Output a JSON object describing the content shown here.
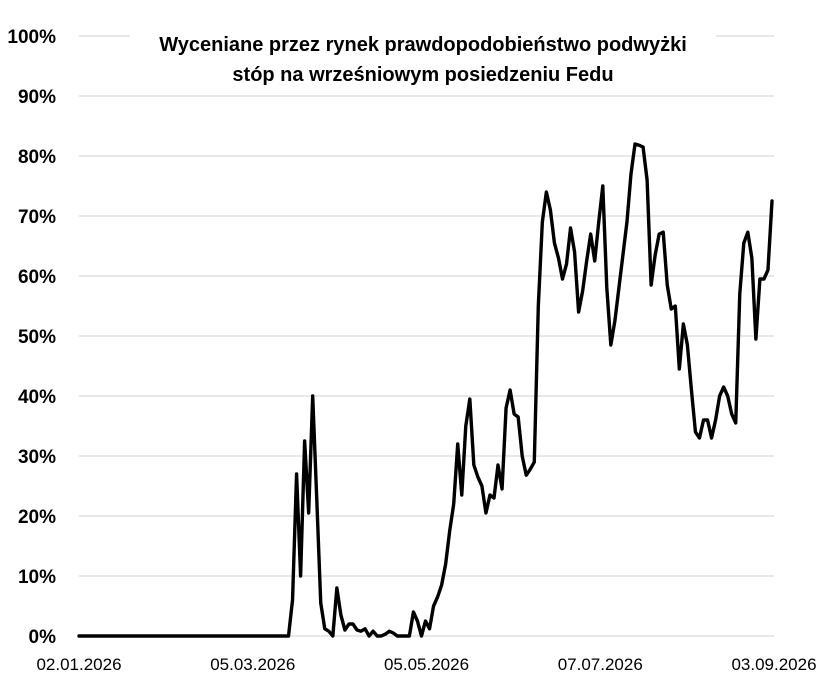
{
  "chart_data": {
    "type": "line",
    "title_lines": [
      "Wyceniane przez rynek prawdopodobieństwo podwyżki",
      "stóp na wrześniowym posiedzeniu Fedu"
    ],
    "xlabel": "",
    "ylabel": "",
    "ylim": [
      0,
      100
    ],
    "y_ticks": [
      {
        "value": 0,
        "label": "0%"
      },
      {
        "value": 10,
        "label": "10%"
      },
      {
        "value": 20,
        "label": "20%"
      },
      {
        "value": 30,
        "label": "30%"
      },
      {
        "value": 40,
        "label": "40%"
      },
      {
        "value": 50,
        "label": "50%"
      },
      {
        "value": 60,
        "label": "60%"
      },
      {
        "value": 70,
        "label": "70%"
      },
      {
        "value": 80,
        "label": "80%"
      },
      {
        "value": 90,
        "label": "90%"
      },
      {
        "value": 100,
        "label": "100%"
      }
    ],
    "x_ticks": [
      "02.01.2026",
      "05.03.2026",
      "05.05.2026",
      "07.07.2026",
      "03.09.2026"
    ],
    "grid": true,
    "legend": "none",
    "line_color": "#000000",
    "series": [
      {
        "values": [
          0,
          0,
          0,
          0,
          0,
          0,
          0,
          0,
          0,
          0,
          0,
          0,
          0,
          0,
          0,
          0,
          0,
          0,
          0,
          0,
          0,
          0,
          0,
          0,
          0,
          0,
          0,
          0,
          0,
          0,
          0,
          0,
          0,
          0,
          0,
          0,
          0,
          0,
          0,
          0,
          0,
          0,
          0,
          0,
          0,
          0,
          0,
          0,
          0,
          0,
          0,
          0,
          0,
          6,
          27,
          10,
          32.5,
          20.5,
          40,
          23,
          5.5,
          1.2,
          0.8,
          0,
          8,
          3.5,
          1,
          2,
          2,
          1,
          0.8,
          1.2,
          0,
          0.8,
          0,
          0,
          0.3,
          0.8,
          0.5,
          0,
          0,
          0,
          0,
          4,
          2.5,
          0,
          2.5,
          1.2,
          5,
          6.5,
          8.5,
          12,
          17.5,
          22,
          32,
          23.5,
          35,
          39.5,
          28.5,
          26.5,
          25,
          20.5,
          23.5,
          23,
          28.5,
          24.5,
          38,
          41,
          37,
          36.5,
          30,
          26.8,
          27.8,
          29,
          55,
          69,
          74,
          71,
          65.5,
          63,
          59.5,
          62,
          68,
          64,
          54,
          57.5,
          62.5,
          67,
          62.5,
          69,
          75,
          58,
          48.5,
          52.5,
          58,
          63.5,
          69,
          77,
          82,
          81.8,
          81.5,
          76,
          58.5,
          63.5,
          67,
          67.3,
          58.5,
          54.5,
          55,
          44.5,
          52,
          48.5,
          41,
          34,
          33,
          36,
          36,
          33,
          36,
          40,
          41.5,
          40,
          37,
          35.5,
          57,
          65.5,
          67.3,
          63,
          49.5,
          59.5,
          59.5,
          61,
          72.5
        ]
      }
    ]
  }
}
